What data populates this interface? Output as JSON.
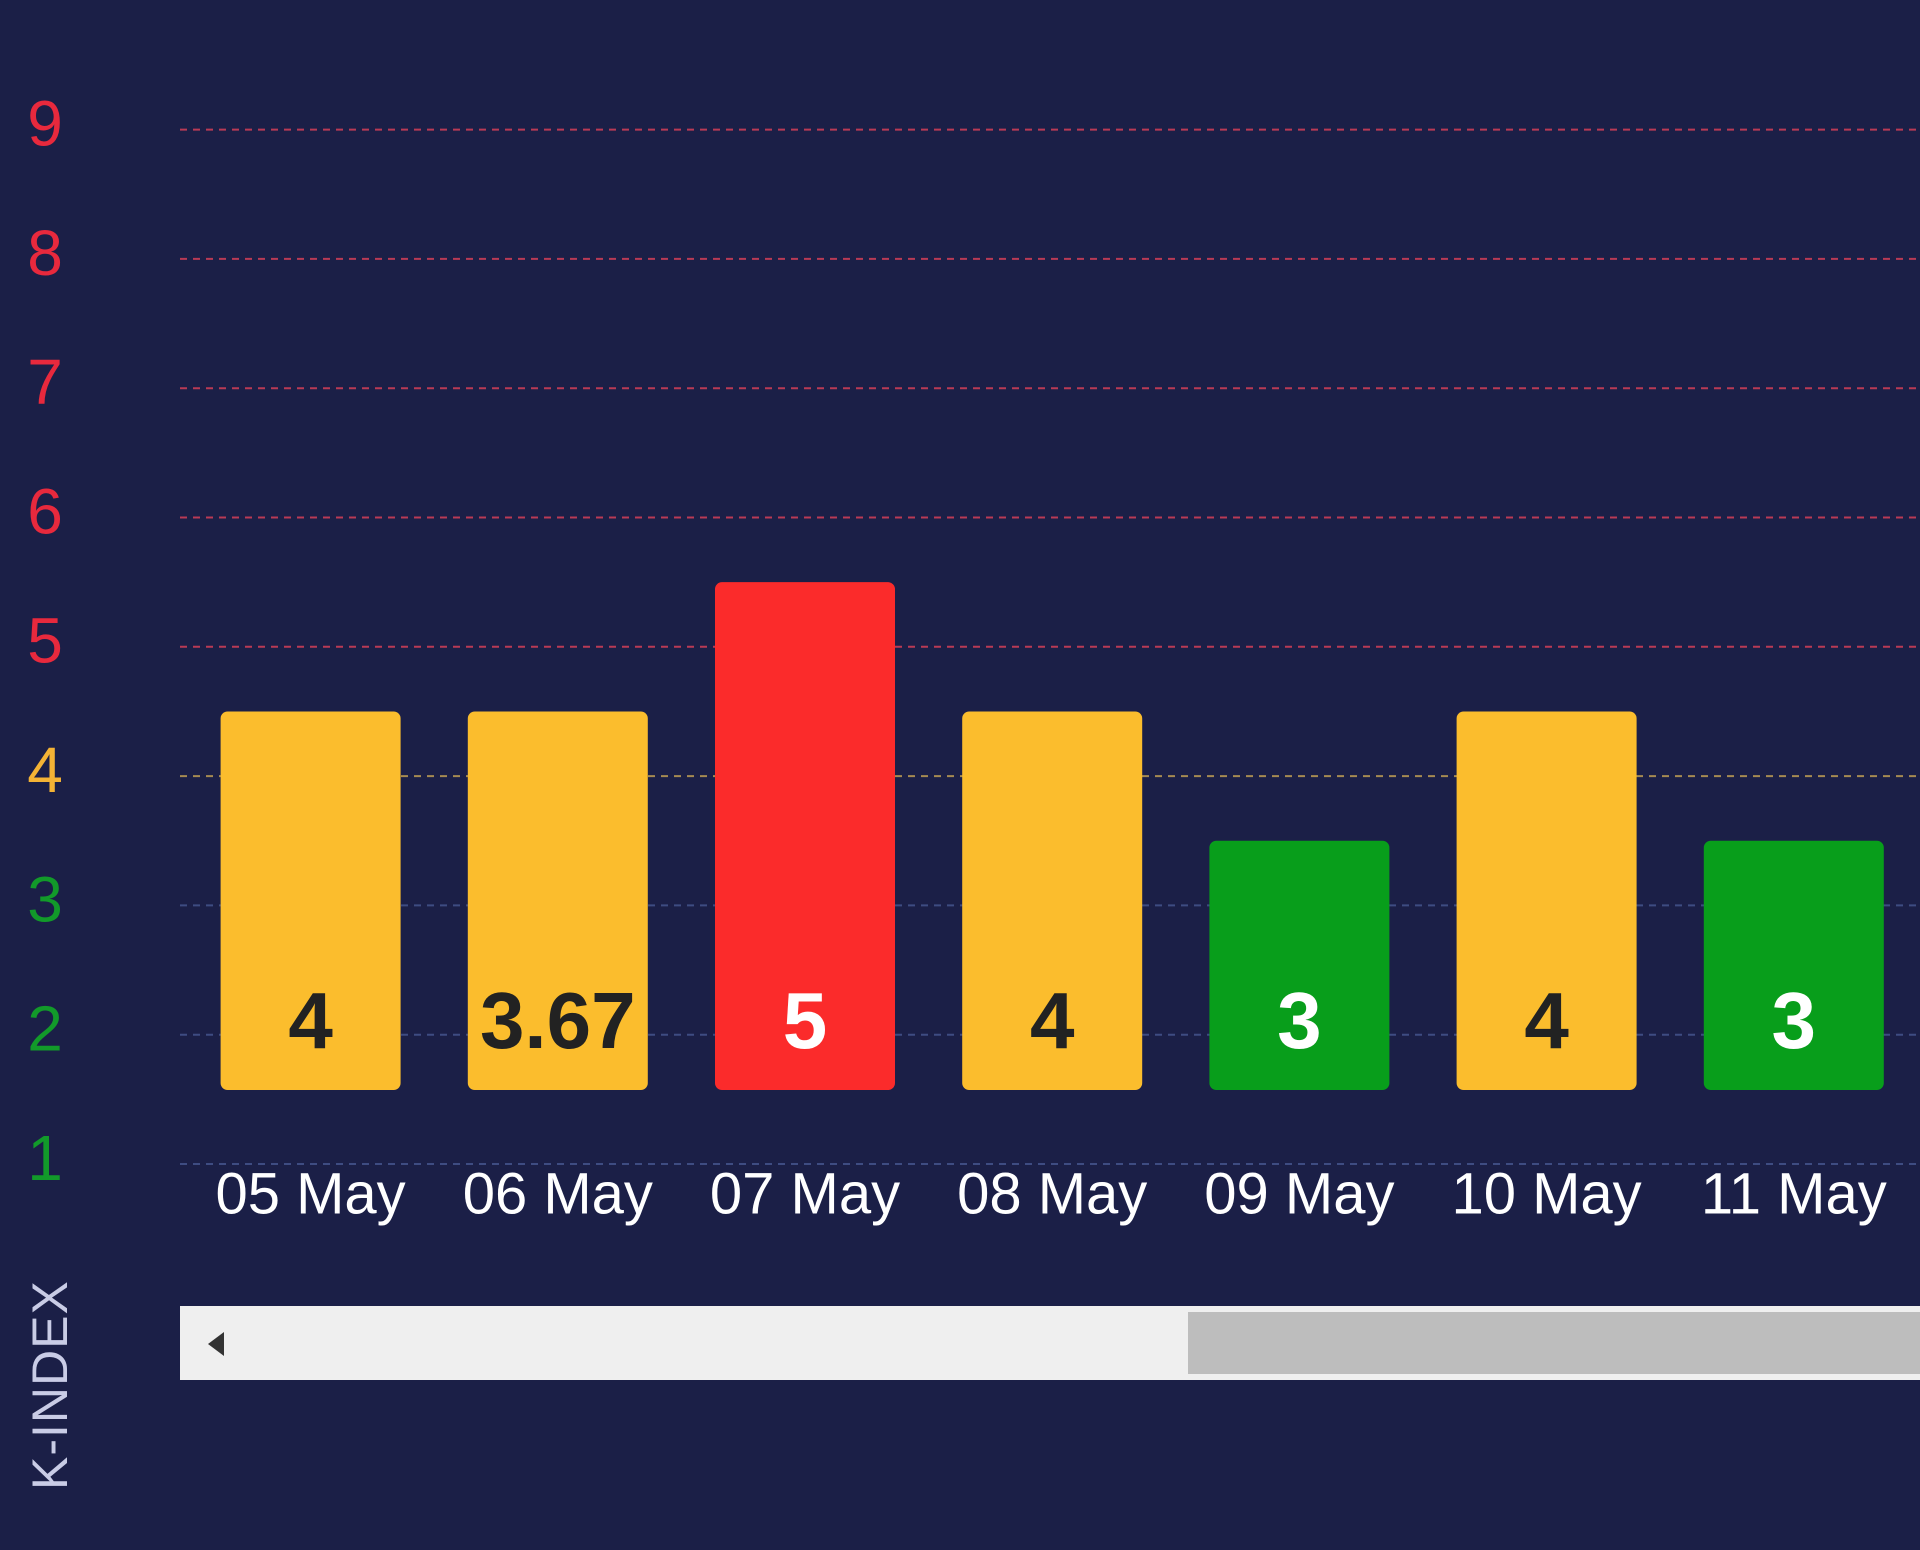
{
  "chart_data": {
    "type": "bar",
    "ylabel": "K-INDEX",
    "ylim": [
      1,
      9
    ],
    "yticks": [
      1,
      2,
      3,
      4,
      5,
      6,
      7,
      8,
      9
    ],
    "categories": [
      "05 May",
      "06 May",
      "07 May",
      "08 May",
      "09 May",
      "10 May",
      "11 May"
    ],
    "values": [
      4,
      3.67,
      5,
      4,
      3,
      4,
      3
    ],
    "bar_labels": [
      "4",
      "3.67",
      "5",
      "4",
      "3",
      "4",
      "3"
    ],
    "bar_heights": [
      4,
      4,
      5,
      4,
      3,
      4,
      3
    ],
    "grid": true,
    "colors": {
      "background": "#1b1f47",
      "low": "#089e1b",
      "moderate": "#fbbd2d",
      "high": "#fb2b2b",
      "tick_low": "#129a2a",
      "tick_moderate": "#f4b335",
      "tick_high": "#e8293d",
      "grid_high": "#b93a55",
      "grid_moderate": "#a68b52",
      "grid_low": "#3e4c82"
    }
  },
  "scrollbar": {
    "arrow_icon": "left-triangle"
  }
}
